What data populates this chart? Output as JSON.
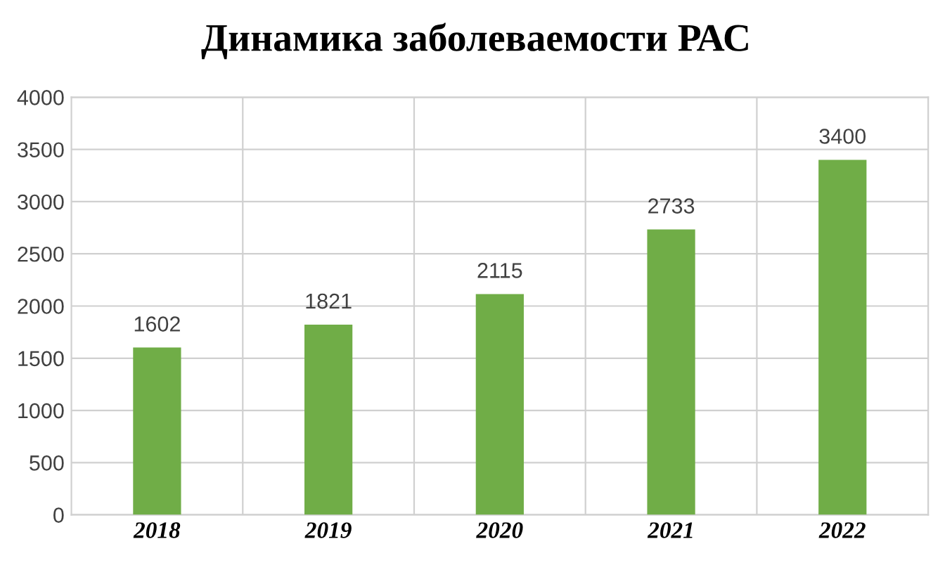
{
  "chart_data": {
    "type": "bar",
    "title": "Динамика заболеваемости РАС",
    "categories": [
      "2018",
      "2019",
      "2020",
      "2021",
      "2022"
    ],
    "values": [
      1602,
      1821,
      2115,
      2733,
      3400
    ],
    "color": "#70ad47",
    "ylim": [
      0,
      4000
    ],
    "yticks": [
      0,
      500,
      1000,
      1500,
      2000,
      2500,
      3000,
      3500,
      4000
    ],
    "grid": true,
    "data_labels": true
  }
}
